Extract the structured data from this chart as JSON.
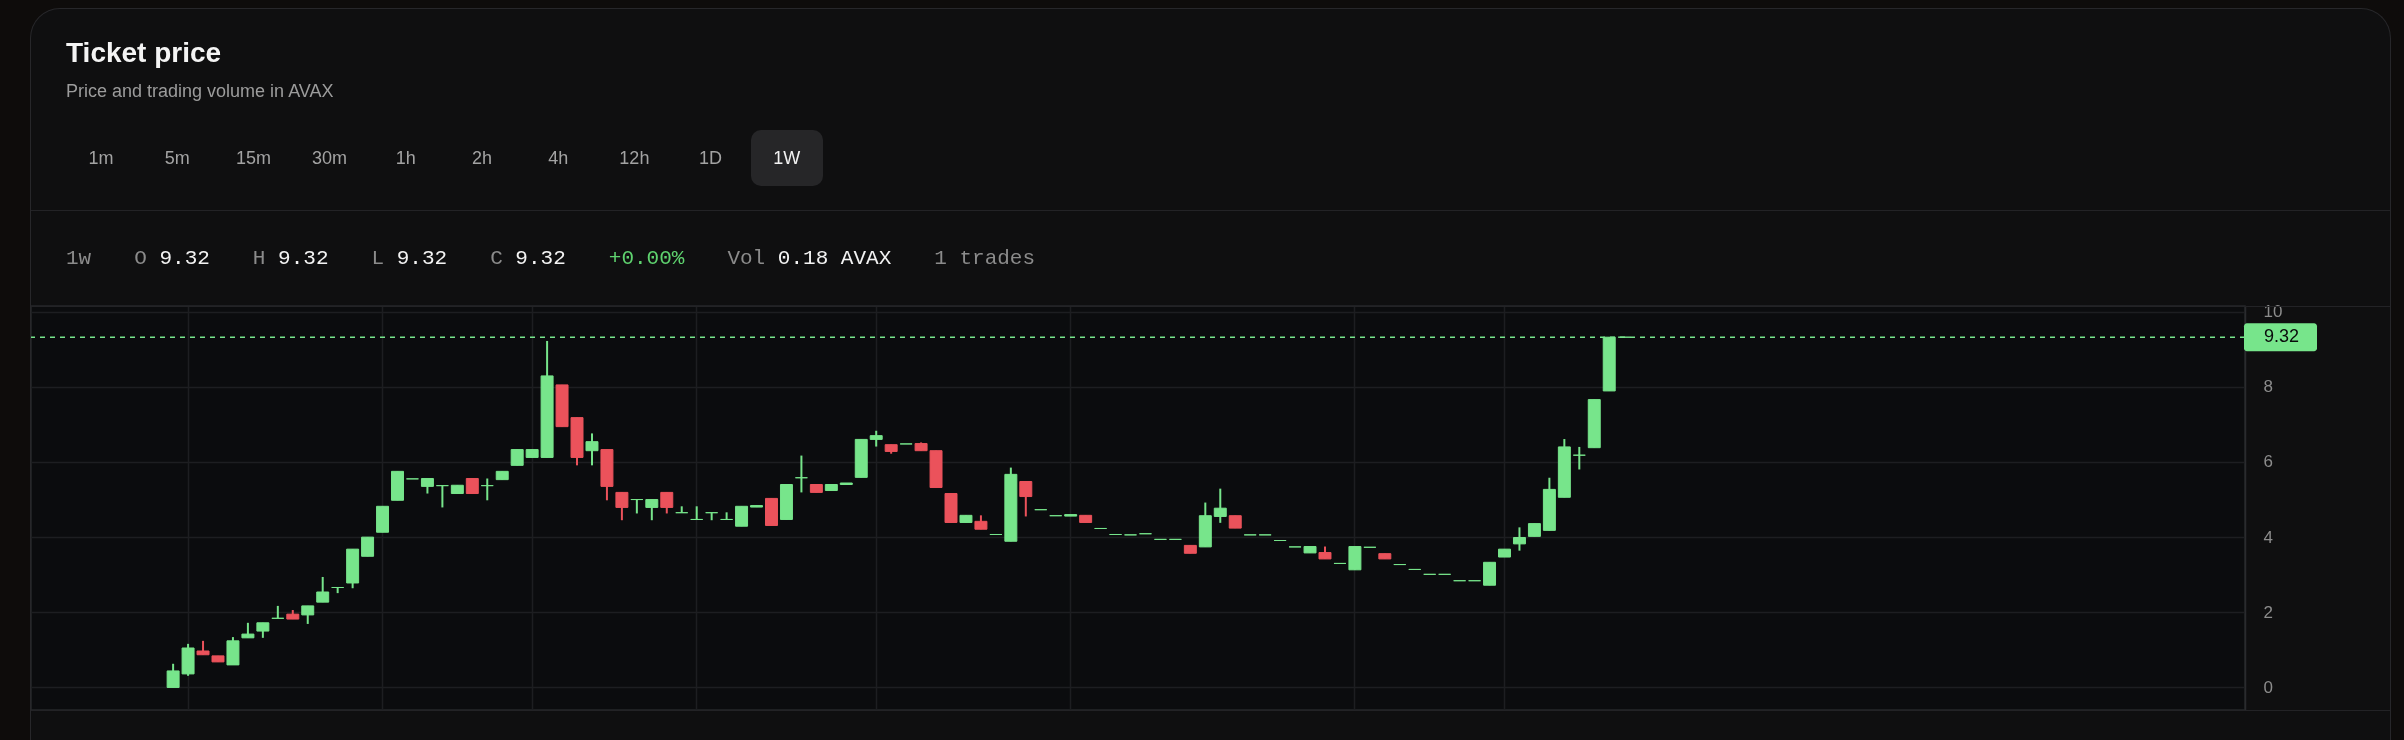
{
  "chart_data": {
    "type": "candlestick",
    "title": "Ticket price",
    "subtitle": "Price and trading volume in AVAX",
    "annotations": [
      "1m",
      "5m",
      "15m",
      "30m",
      "1h",
      "2h",
      "4h",
      "12h",
      "1D",
      "1W",
      "1w",
      "O 9.32",
      "H 9.32",
      "L 9.32",
      "C 9.32",
      "+0.00%",
      "Vol 0.18 AVAX",
      "1 trades"
    ],
    "categories": [
      null,
      null,
      null,
      null,
      null,
      null,
      null,
      null,
      null,
      null,
      null,
      null,
      null,
      null,
      null,
      null,
      null,
      null,
      null,
      null,
      null,
      null,
      null,
      null,
      null,
      null,
      null,
      null,
      null,
      null,
      null,
      null,
      null,
      null,
      null,
      null,
      null,
      null,
      null,
      null,
      null,
      null,
      null,
      null,
      null,
      null,
      null,
      null,
      null,
      null,
      null,
      null,
      null,
      null,
      null,
      null,
      null,
      null,
      null,
      null,
      null,
      null,
      null,
      null,
      null,
      null,
      null,
      null,
      null,
      null,
      null,
      null,
      null,
      null,
      null,
      null,
      null,
      null,
      null,
      null,
      null,
      null,
      null,
      null,
      null,
      null,
      null,
      null,
      null,
      null,
      null,
      null,
      null,
      null,
      null,
      null,
      null,
      null,
      null,
      null,
      null,
      null,
      null,
      null,
      null,
      null,
      null,
      null,
      null,
      null,
      null,
      null,
      null,
      null,
      null,
      null,
      null,
      null,
      null,
      null,
      null,
      null,
      null,
      null,
      null,
      null,
      null,
      null,
      null,
      null,
      null,
      null,
      null,
      null,
      null,
      null,
      null,
      null,
      null,
      null,
      null,
      null,
      null,
      null,
      null,
      null,
      null,
      null
    ],
    "ohlc": [
      null,
      null,
      null,
      null,
      null,
      null,
      null,
      null,
      null,
      [
        0,
        0.63,
        0,
        0.44
      ],
      [
        0.36,
        1.16,
        0.31,
        1.05
      ],
      [
        0.97,
        1.24,
        0.87,
        0.87
      ],
      [
        0.84,
        0.84,
        0.68,
        0.68
      ],
      [
        0.6,
        1.34,
        0.6,
        1.24
      ],
      [
        1.32,
        1.72,
        1.32,
        1.42
      ],
      [
        1.5,
        1.72,
        1.32,
        1.72
      ],
      [
        1.84,
        2.17,
        1.84,
        1.84
      ],
      [
        1.95,
        2.06,
        1.82,
        1.82
      ],
      [
        1.93,
        2.17,
        1.69,
        2.17
      ],
      [
        2.27,
        2.94,
        2.27,
        2.54
      ],
      [
        2.66,
        2.66,
        2.51,
        2.66
      ],
      [
        2.78,
        3.68,
        2.64,
        3.68
      ],
      [
        3.49,
        4,
        3.49,
        4
      ],
      [
        4.13,
        4.82,
        4.13,
        4.82
      ],
      [
        4.98,
        5.75,
        4.98,
        5.75
      ],
      [
        5.55,
        5.55,
        5.55,
        5.55
      ],
      [
        5.35,
        5.56,
        5.16,
        5.56
      ],
      [
        5.37,
        5.37,
        4.79,
        5.37
      ],
      [
        5.16,
        5.38,
        5.16,
        5.38
      ],
      [
        5.56,
        5.56,
        5.16,
        5.16
      ],
      [
        5.37,
        5.56,
        4.98,
        5.37
      ],
      [
        5.53,
        5.75,
        5.53,
        5.75
      ],
      [
        5.91,
        6.33,
        5.91,
        6.33
      ],
      [
        6.12,
        6.33,
        6.12,
        6.33
      ],
      [
        6.12,
        9.22,
        6.12,
        8.29
      ],
      [
        8.05,
        8.05,
        6.94,
        6.94
      ],
      [
        7.18,
        7.18,
        5.91,
        6.12
      ],
      [
        6.3,
        6.76,
        5.91,
        6.54
      ],
      [
        6.33,
        6.33,
        4.98,
        5.35
      ],
      [
        5.19,
        5.19,
        4.45,
        4.79
      ],
      [
        5,
        5,
        4.63,
        5
      ],
      [
        4.79,
        5,
        4.45,
        5
      ],
      [
        5.19,
        5.19,
        4.63,
        4.79
      ],
      [
        4.65,
        4.82,
        4.65,
        4.65
      ],
      [
        4.47,
        4.82,
        4.47,
        4.47
      ],
      [
        4.65,
        4.65,
        4.45,
        4.65
      ],
      [
        4.47,
        4.66,
        4.47,
        4.47
      ],
      [
        4.29,
        4.82,
        4.29,
        4.82
      ],
      [
        4.8,
        4.84,
        4.8,
        4.84
      ],
      [
        5.03,
        5.03,
        4.31,
        4.31
      ],
      [
        4.47,
        5.4,
        4.47,
        5.4
      ],
      [
        5.58,
        6.17,
        5.19,
        5.58
      ],
      [
        5.4,
        5.4,
        5.19,
        5.19
      ],
      [
        5.24,
        5.4,
        5.24,
        5.4
      ],
      [
        5.4,
        5.44,
        5.4,
        5.44
      ],
      [
        5.59,
        6.6,
        5.59,
        6.6
      ],
      [
        6.6,
        6.83,
        6.41,
        6.7
      ],
      [
        6.46,
        6.46,
        6.22,
        6.28
      ],
      [
        6.48,
        6.48,
        6.48,
        6.48
      ],
      [
        6.49,
        6.52,
        6.3,
        6.3
      ],
      [
        6.3,
        6.3,
        5.32,
        5.32
      ],
      [
        5.16,
        5.16,
        4.39,
        4.39
      ],
      [
        4.39,
        4.58,
        4.39,
        4.58
      ],
      [
        4.42,
        4.58,
        4.21,
        4.21
      ],
      [
        4.07,
        4.07,
        4.07,
        4.07
      ],
      [
        3.89,
        5.85,
        3.89,
        5.67
      ],
      [
        5.48,
        5.48,
        4.55,
        5.08
      ],
      [
        4.73,
        4.73,
        4.73,
        4.73
      ],
      [
        4.57,
        4.57,
        4.57,
        4.57
      ],
      [
        4.56,
        4.6,
        4.56,
        4.6
      ],
      [
        4.58,
        4.58,
        4.39,
        4.39
      ],
      [
        4.23,
        4.23,
        4.23,
        4.23
      ],
      [
        4.07,
        4.07,
        4.07,
        4.07
      ],
      [
        4.06,
        4.06,
        4.06,
        4.06
      ],
      [
        4.09,
        4.09,
        4.09,
        4.09
      ],
      [
        3.94,
        3.94,
        3.94,
        3.94
      ],
      [
        3.94,
        3.94,
        3.94,
        3.94
      ],
      [
        3.78,
        3.78,
        3.57,
        3.57
      ],
      [
        3.74,
        4.92,
        3.74,
        4.57
      ],
      [
        4.55,
        5.29,
        4.38,
        4.77
      ],
      [
        4.57,
        4.57,
        4.24,
        4.24
      ],
      [
        4.06,
        4.06,
        4.06,
        4.06
      ],
      [
        4.06,
        4.06,
        4.06,
        4.06
      ],
      [
        3.91,
        3.91,
        3.91,
        3.91
      ],
      [
        3.74,
        3.74,
        3.74,
        3.74
      ],
      [
        3.58,
        3.75,
        3.58,
        3.75
      ],
      [
        3.59,
        3.75,
        3.42,
        3.42
      ],
      [
        3.3,
        3.3,
        3.3,
        3.3
      ],
      [
        3.13,
        3.75,
        3.13,
        3.75
      ],
      [
        3.73,
        3.73,
        3.73,
        3.73
      ],
      [
        3.56,
        3.56,
        3.42,
        3.42
      ],
      [
        3.27,
        3.27,
        3.27,
        3.27
      ],
      [
        3.14,
        3.14,
        3.14,
        3.14
      ],
      [
        3.01,
        3.01,
        3.01,
        3.01
      ],
      [
        3.01,
        3.01,
        3.01,
        3.01
      ],
      [
        2.84,
        2.84,
        2.84,
        2.84
      ],
      [
        2.84,
        2.84,
        2.84,
        2.84
      ],
      [
        2.72,
        3.33,
        2.72,
        3.33
      ],
      [
        3.47,
        3.68,
        3.47,
        3.68
      ],
      [
        3.82,
        4.26,
        3.64,
        3.99
      ],
      [
        4.02,
        4.36,
        4.02,
        4.36
      ],
      [
        4.18,
        5.58,
        4.18,
        5.27
      ],
      [
        5.06,
        6.61,
        5.06,
        6.4
      ],
      [
        6.18,
        6.4,
        5.8,
        6.18
      ],
      [
        6.38,
        7.66,
        6.38,
        7.66
      ],
      [
        7.89,
        9.32,
        7.89,
        9.32
      ],
      [
        9.32,
        9.32,
        9.32,
        9.32
      ],
      null,
      null,
      null,
      null,
      null,
      null,
      null,
      null,
      null,
      null,
      null,
      null,
      null,
      null,
      null,
      null,
      null,
      null,
      null,
      null,
      null,
      null,
      null,
      null,
      null,
      null,
      null,
      null,
      null,
      null,
      null,
      null,
      null,
      null,
      null,
      null,
      null,
      null,
      null,
      null,
      null
    ],
    "colors": [
      null,
      null,
      null,
      null,
      null,
      null,
      null,
      null,
      null,
      "#77e58b",
      "#77e58b",
      "#eb525b",
      "#eb525b",
      "#77e58b",
      "#77e58b",
      "#77e58b",
      "#77e58b",
      "#eb525b",
      "#77e58b",
      "#77e58b",
      "#77e58b",
      "#77e58b",
      "#77e58b",
      "#77e58b",
      "#77e58b",
      "#77e58b",
      "#77e58b",
      "#77e58b",
      "#77e58b",
      "#eb525b",
      "#77e58b",
      "#77e58b",
      "#77e58b",
      "#77e58b",
      "#77e58b",
      "#eb525b",
      "#eb525b",
      "#77e58b",
      "#eb525b",
      "#eb525b",
      "#77e58b",
      "#77e58b",
      "#eb525b",
      "#77e58b",
      "#77e58b",
      "#77e58b",
      "#77e58b",
      "#77e58b",
      "#77e58b",
      "#eb525b",
      "#77e58b",
      "#77e58b",
      "#eb525b",
      "#77e58b",
      "#77e58b",
      "#77e58b",
      "#77e58b",
      "#eb525b",
      "#77e58b",
      "#eb525b",
      "#eb525b",
      "#eb525b",
      "#77e58b",
      "#eb525b",
      "#77e58b",
      "#77e58b",
      "#eb525b",
      "#77e58b",
      "#77e58b",
      "#77e58b",
      "#eb525b",
      "#77e58b",
      "#77e58b",
      "#77e58b",
      "#77e58b",
      "#77e58b",
      "#77e58b",
      "#eb525b",
      "#77e58b",
      "#77e58b",
      "#eb525b",
      "#77e58b",
      "#77e58b",
      "#77e58b",
      "#77e58b",
      "#77e58b",
      "#eb525b",
      "#77e58b",
      "#77e58b",
      "#77e58b",
      "#eb525b",
      "#77e58b",
      "#77e58b",
      "#77e58b",
      "#77e58b",
      "#77e58b",
      "#77e58b",
      "#77e58b",
      "#77e58b",
      "#77e58b",
      "#77e58b",
      "#77e58b",
      "#77e58b",
      "#77e58b",
      "#77e58b",
      "#77e58b",
      "#77e58b",
      null,
      null,
      null,
      null,
      null,
      null,
      null,
      null,
      null,
      null,
      null,
      null,
      null,
      null,
      null,
      null,
      null,
      null,
      null,
      null,
      null,
      null,
      null,
      null,
      null,
      null,
      null,
      null,
      null,
      null,
      null,
      null,
      null,
      null,
      null,
      null,
      null,
      null,
      null,
      null,
      null
    ],
    "ylim": [
      -0.6,
      10.15
    ],
    "yticks": [
      0,
      2,
      4,
      6,
      8,
      10
    ],
    "grid": true,
    "tick_labels": "y",
    "ref_lines": [
      {
        "axis": "y",
        "value": 9.32,
        "label": "9.32",
        "color": "#77e58b",
        "line_style": "dashed"
      }
    ]
  }
}
